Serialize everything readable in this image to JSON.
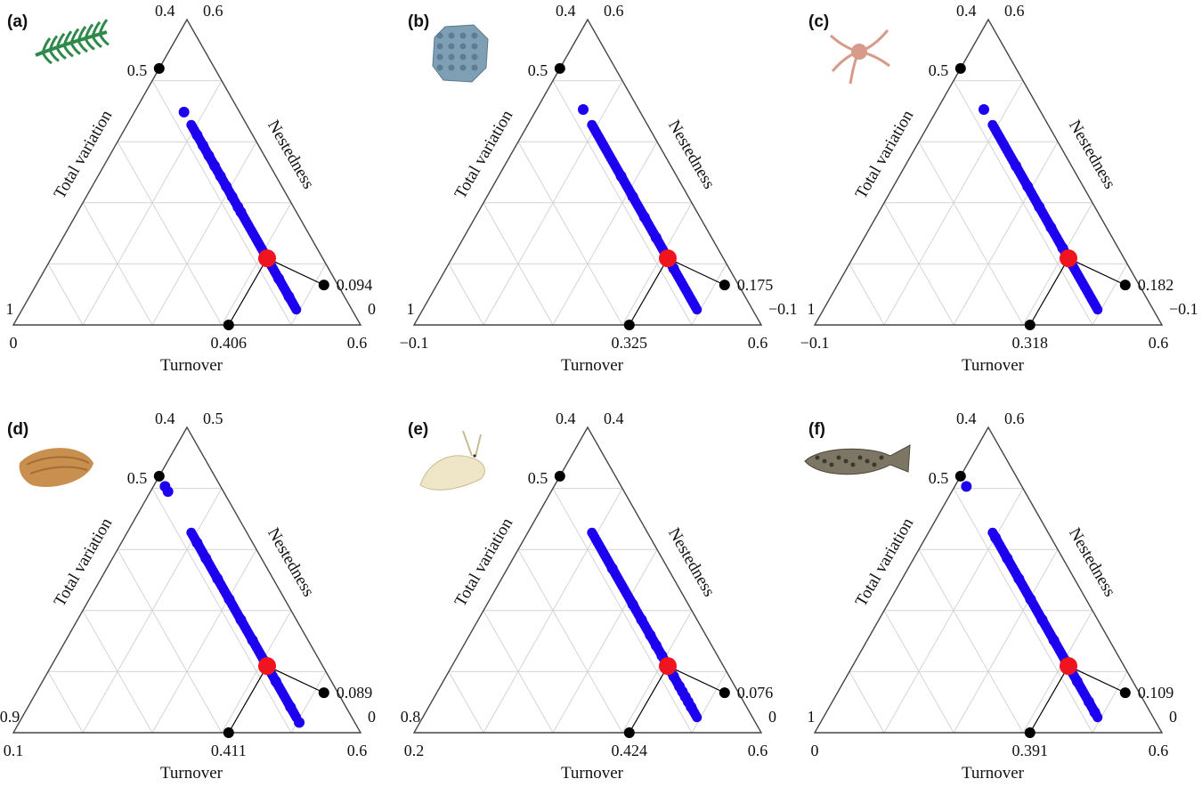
{
  "colors": {
    "frame": "#444444",
    "grid": "#d4d4d4",
    "points": "#1e00f0",
    "centroid": "#f0141e",
    "marker": "#000000"
  },
  "axis_names": {
    "left": "Total variation",
    "right": "Nestedness",
    "bottom": "Turnover"
  },
  "chart_data": [
    {
      "panel": "(a)",
      "organism_icon": "seaweed-icon",
      "type": "ternary-scatter",
      "corner_labels": {
        "top_left": "0.4",
        "top_right": "0.6",
        "left": "1",
        "right": "0",
        "bottom_left": "0",
        "bottom_right": "0.6"
      },
      "total_variation_mark": "0.5",
      "centroid": {
        "nestedness": "0.094",
        "turnover": "0.406"
      },
      "points": [
        [
          0.17,
          0.5
        ],
        [
          0.26,
          0.55
        ],
        [
          0.3,
          0.6
        ],
        [
          0.34,
          0.65
        ],
        [
          0.38,
          0.7
        ],
        [
          0.42,
          0.75
        ],
        [
          0.46,
          0.8
        ],
        [
          0.5,
          0.85
        ],
        [
          0.54,
          0.9
        ],
        [
          0.56,
          0.93
        ],
        [
          0.82,
          0.98
        ],
        [
          0.89,
          0.99
        ]
      ]
    },
    {
      "panel": "(b)",
      "organism_icon": "bryozoan-icon",
      "type": "ternary-scatter",
      "corner_labels": {
        "top_left": "0.4",
        "top_right": "0.6",
        "left": "1",
        "right": "−0.1",
        "bottom_left": "−0.1",
        "bottom_right": "0.6"
      },
      "total_variation_mark": "0.5",
      "centroid": {
        "nestedness": "0.175",
        "turnover": "0.325"
      },
      "points": [
        [
          0.16,
          0.5
        ],
        [
          0.42,
          0.55
        ],
        [
          0.5,
          0.6
        ],
        [
          0.58,
          0.65
        ],
        [
          0.66,
          0.7
        ],
        [
          0.74,
          0.75
        ],
        [
          0.78,
          0.77
        ]
      ]
    },
    {
      "panel": "(c)",
      "organism_icon": "brittle-star-icon",
      "type": "ternary-scatter",
      "corner_labels": {
        "top_left": "0.4",
        "top_right": "0.6",
        "left": "1",
        "right": "−0.1",
        "bottom_left": "−0.1",
        "bottom_right": "0.6"
      },
      "total_variation_mark": "0.5",
      "centroid": {
        "nestedness": "0.182",
        "turnover": "0.318"
      },
      "points": [
        [
          0.16,
          0.5
        ],
        [
          0.38,
          0.55
        ],
        [
          0.46,
          0.6
        ],
        [
          0.54,
          0.65
        ],
        [
          0.62,
          0.7
        ],
        [
          0.7,
          0.75
        ],
        [
          0.76,
          0.78
        ]
      ]
    },
    {
      "panel": "(d)",
      "organism_icon": "sea-snail-icon",
      "type": "ternary-scatter",
      "corner_labels": {
        "top_left": "0.4",
        "top_right": "0.5",
        "left": "0.9",
        "right": "0",
        "bottom_left": "0.1",
        "bottom_right": "0.6"
      },
      "total_variation_mark": "0.5",
      "centroid": {
        "nestedness": "0.089",
        "turnover": "0.411"
      },
      "points": [
        [
          0.04,
          0.5
        ],
        [
          0.06,
          0.51
        ],
        [
          0.26,
          0.55
        ],
        [
          0.32,
          0.6
        ],
        [
          0.4,
          0.65
        ],
        [
          0.48,
          0.7
        ],
        [
          0.56,
          0.75
        ],
        [
          0.64,
          0.8
        ],
        [
          0.72,
          0.85
        ],
        [
          0.8,
          0.9
        ],
        [
          0.9,
          0.96
        ],
        [
          0.96,
          1.0
        ]
      ]
    },
    {
      "panel": "(e)",
      "organism_icon": "amphipod-icon",
      "type": "ternary-scatter",
      "corner_labels": {
        "top_left": "0.4",
        "top_right": "0.4",
        "left": "0.8",
        "right": "0",
        "bottom_left": "0.2",
        "bottom_right": "0.6"
      },
      "total_variation_mark": "0.5",
      "centroid": {
        "nestedness": "0.076",
        "turnover": "0.424"
      },
      "points": [
        [
          0.36,
          0.5
        ],
        [
          0.5,
          0.55
        ],
        [
          0.56,
          0.6
        ],
        [
          0.62,
          0.65
        ],
        [
          0.66,
          0.7
        ],
        [
          0.7,
          0.75
        ],
        [
          0.74,
          0.8
        ],
        [
          0.78,
          0.83
        ],
        [
          0.82,
          0.86
        ],
        [
          0.84,
          0.9
        ],
        [
          0.86,
          0.93
        ],
        [
          0.88,
          0.97
        ],
        [
          0.9,
          1.0
        ]
      ]
    },
    {
      "panel": "(f)",
      "organism_icon": "grouper-fish-icon",
      "type": "ternary-scatter",
      "corner_labels": {
        "top_left": "0.4",
        "top_right": "0.6",
        "left": "1",
        "right": "0",
        "bottom_left": "0",
        "bottom_right": "0.6"
      },
      "total_variation_mark": "0.5",
      "centroid": {
        "nestedness": "0.109",
        "turnover": "0.391"
      },
      "points": [
        [
          0.04,
          0.5
        ],
        [
          0.24,
          0.55
        ],
        [
          0.32,
          0.6
        ],
        [
          0.4,
          0.65
        ],
        [
          0.48,
          0.7
        ],
        [
          0.56,
          0.75
        ],
        [
          0.64,
          0.8
        ],
        [
          0.72,
          0.85
        ],
        [
          0.8,
          0.9
        ],
        [
          0.88,
          0.95
        ],
        [
          0.92,
          0.98
        ]
      ]
    }
  ]
}
